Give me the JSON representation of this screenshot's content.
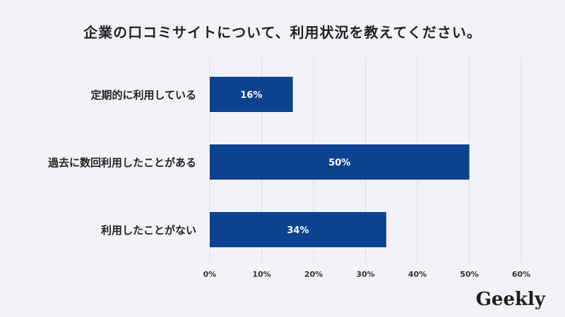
{
  "title": "企業の口コミサイトについて、利用状況を教えてください。",
  "brand": {
    "logo_text": "Geekly"
  },
  "colors": {
    "bar": "#0b4390",
    "grid": "#dcdde6",
    "label": "#222222",
    "tick": "#333333",
    "bar_label": "#ffffff"
  },
  "chart_data": {
    "type": "bar",
    "orientation": "horizontal",
    "categories": [
      "定期的に利用している",
      "過去に数回利用したことがある",
      "利用したことがない"
    ],
    "values": [
      16,
      50,
      34
    ],
    "value_labels": [
      "16%",
      "50%",
      "34%"
    ],
    "xlim": [
      0,
      60
    ],
    "x_ticks": [
      0,
      10,
      20,
      30,
      40,
      50,
      60
    ],
    "x_tick_labels": [
      "0%",
      "10%",
      "20%",
      "30%",
      "40%",
      "50%",
      "60%"
    ],
    "grid": true,
    "legend": "none"
  }
}
